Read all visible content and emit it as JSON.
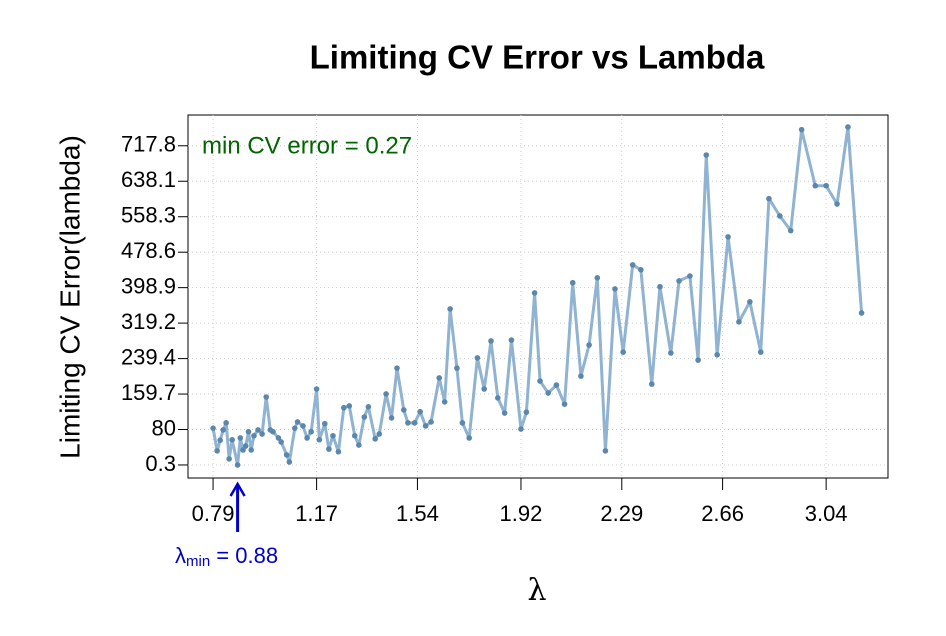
{
  "chart_data": {
    "type": "line",
    "title": "Limiting CV Error vs Lambda",
    "x_label": "λ",
    "y_label": "Limiting CV Error(lambda)",
    "line_color": "#8fb3d0",
    "point_color": "#5b87ad",
    "grid": true,
    "xlim": [
      0.698,
      3.267
    ],
    "ylim": [
      -29,
      787
    ],
    "xticks": [
      0.79,
      1.17,
      1.54,
      1.92,
      2.29,
      2.66,
      3.04
    ],
    "yticks": [
      0.3,
      80,
      159.7,
      239.4,
      319.2,
      398.9,
      478.6,
      558.3,
      638.1,
      717.8
    ],
    "x": [
      0.79,
      0.805,
      0.816,
      0.827,
      0.838,
      0.849,
      0.86,
      0.88,
      0.89,
      0.9,
      0.91,
      0.92,
      0.93,
      0.94,
      0.955,
      0.97,
      0.985,
      1.0,
      1.01,
      1.03,
      1.04,
      1.06,
      1.07,
      1.09,
      1.1,
      1.12,
      1.135,
      1.15,
      1.17,
      1.18,
      1.2,
      1.215,
      1.23,
      1.25,
      1.27,
      1.29,
      1.31,
      1.325,
      1.345,
      1.36,
      1.385,
      1.4,
      1.425,
      1.445,
      1.465,
      1.49,
      1.505,
      1.53,
      1.55,
      1.57,
      1.59,
      1.62,
      1.64,
      1.66,
      1.685,
      1.705,
      1.73,
      1.76,
      1.785,
      1.81,
      1.835,
      1.86,
      1.885,
      1.92,
      1.94,
      1.97,
      1.99,
      2.02,
      2.05,
      2.08,
      2.11,
      2.14,
      2.17,
      2.2,
      2.23,
      2.265,
      2.295,
      2.33,
      2.36,
      2.4,
      2.43,
      2.47,
      2.5,
      2.54,
      2.57,
      2.6,
      2.64,
      2.68,
      2.72,
      2.76,
      2.8,
      2.83,
      2.87,
      2.91,
      2.95,
      3.0,
      3.04,
      3.08,
      3.12,
      3.17
    ],
    "values": [
      83,
      32,
      56,
      79,
      95,
      14,
      57,
      0.27,
      61,
      34,
      43,
      75,
      34,
      66,
      79,
      70,
      153,
      79,
      75,
      61,
      52,
      23,
      7,
      83,
      97,
      88,
      61,
      75,
      171,
      57,
      93,
      36,
      66,
      30,
      129,
      133,
      66,
      45,
      108,
      131,
      59,
      70,
      160,
      106,
      218,
      124,
      95,
      95,
      120,
      88,
      97,
      196,
      142,
      351,
      218,
      95,
      61,
      241,
      171,
      279,
      151,
      117,
      281,
      81,
      119,
      387,
      189,
      162,
      180,
      137,
      410,
      200,
      270,
      421,
      32,
      396,
      254,
      450,
      439,
      182,
      401,
      252,
      414,
      425,
      236,
      697,
      248,
      513,
      322,
      367,
      254,
      599,
      560,
      527,
      754,
      628,
      628,
      587,
      760,
      342
    ],
    "annotations": [
      {
        "text": "min CV error = 0.27",
        "color": "#006400"
      },
      {
        "text": "λ",
        "subscript": "min",
        "suffix": " = 0.88",
        "x": 0.88,
        "color": "#0000cc"
      }
    ]
  }
}
